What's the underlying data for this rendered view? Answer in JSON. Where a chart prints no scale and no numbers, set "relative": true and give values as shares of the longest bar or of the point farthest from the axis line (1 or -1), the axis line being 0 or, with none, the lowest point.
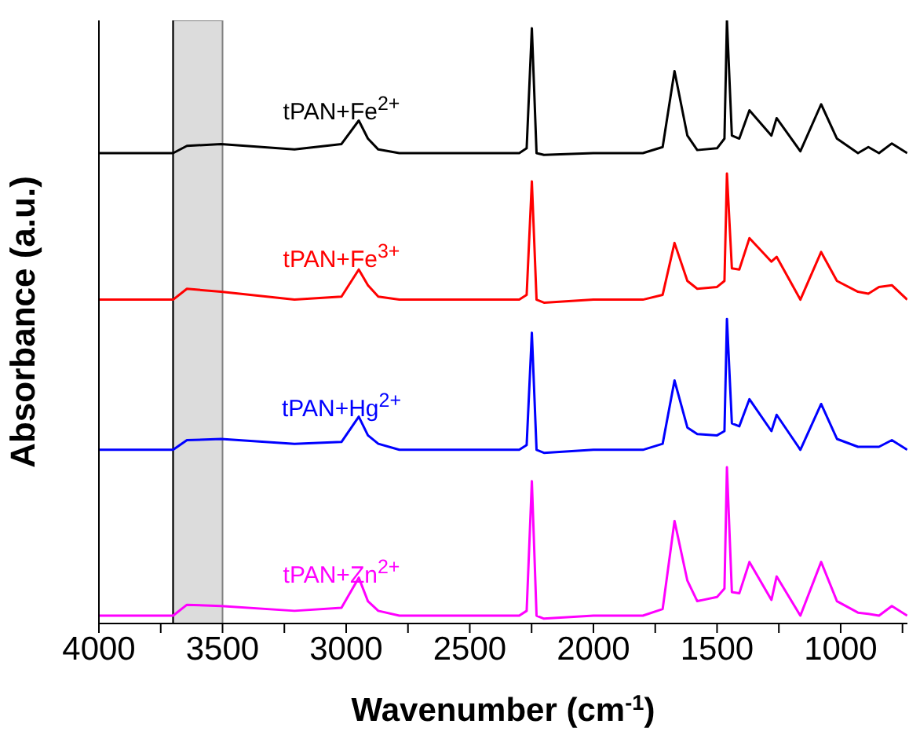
{
  "chart_data": {
    "type": "line",
    "relative": true,
    "xlabel": "Wavenumber (cm$^{-1}$)",
    "ylabel": "Absorbance (a.u.)",
    "x": [
      4000,
      3700,
      3644,
      3506,
      3209,
      3019,
      2949,
      2912,
      2870,
      2785,
      2300,
      2270,
      2249,
      2230,
      2200,
      2000,
      1800,
      1720,
      1672,
      1620,
      1580,
      1500,
      1470,
      1460,
      1440,
      1410,
      1369,
      1280,
      1259,
      1163,
      1079,
      1015,
      930,
      888,
      845,
      793,
      731
    ],
    "xlim": [
      4000,
      730
    ],
    "xticks": [
      4000,
      {
        "value": 3750,
        "label": null
      },
      3500,
      {
        "value": 3250,
        "label": null
      },
      3000,
      {
        "value": 2750,
        "label": null
      },
      2500,
      {
        "value": 2250,
        "label": null
      },
      2000,
      {
        "value": 1750,
        "label": null
      },
      1500,
      {
        "value": 1250,
        "label": null
      },
      1000,
      {
        "value": 750,
        "label": null
      }
    ],
    "series": [
      {
        "name": "tPAN+Fe$^{2+}$",
        "color": "#000000",
        "values": [
          0.78,
          0.78,
          0.792,
          0.795,
          0.786,
          0.795,
          0.834,
          0.804,
          0.786,
          0.78,
          0.78,
          0.788,
          0.987,
          0.78,
          0.777,
          0.78,
          0.78,
          0.79,
          0.916,
          0.809,
          0.785,
          0.788,
          0.804,
          1.0,
          0.809,
          0.804,
          0.851,
          0.809,
          0.838,
          0.783,
          0.861,
          0.804,
          0.78,
          0.79,
          0.78,
          0.796,
          0.78
        ]
      },
      {
        "name": "tPAN+Fe$^{3+}$",
        "color": "#ff0000",
        "values": [
          0.537,
          0.537,
          0.555,
          0.55,
          0.537,
          0.542,
          0.587,
          0.561,
          0.542,
          0.537,
          0.537,
          0.545,
          0.733,
          0.537,
          0.532,
          0.537,
          0.537,
          0.545,
          0.631,
          0.568,
          0.555,
          0.558,
          0.568,
          0.746,
          0.589,
          0.587,
          0.639,
          0.6,
          0.608,
          0.537,
          0.616,
          0.568,
          0.55,
          0.547,
          0.558,
          0.561,
          0.537
        ]
      },
      {
        "name": "tPAN+Hg$^{2+}$",
        "color": "#0000ff",
        "values": [
          0.288,
          0.288,
          0.304,
          0.306,
          0.298,
          0.301,
          0.343,
          0.312,
          0.298,
          0.288,
          0.288,
          0.296,
          0.482,
          0.288,
          0.283,
          0.288,
          0.288,
          0.298,
          0.403,
          0.325,
          0.314,
          0.312,
          0.319,
          0.505,
          0.332,
          0.327,
          0.372,
          0.319,
          0.346,
          0.288,
          0.364,
          0.306,
          0.293,
          0.293,
          0.293,
          0.304,
          0.288
        ]
      },
      {
        "name": "tPAN+Zn$^{2+}$",
        "color": "#ff00ff",
        "values": [
          0.013,
          0.013,
          0.031,
          0.029,
          0.021,
          0.026,
          0.076,
          0.037,
          0.021,
          0.013,
          0.013,
          0.021,
          0.236,
          0.013,
          0.008,
          0.013,
          0.013,
          0.024,
          0.17,
          0.071,
          0.037,
          0.044,
          0.058,
          0.259,
          0.052,
          0.05,
          0.102,
          0.039,
          0.078,
          0.013,
          0.102,
          0.037,
          0.018,
          0.016,
          0.013,
          0.029,
          0.013
        ]
      }
    ],
    "ref_lines": [
      {
        "axis": "x",
        "value": 3700,
        "color": "#000000"
      }
    ],
    "bands": [
      {
        "axis": "x",
        "from": 3700,
        "to": 3500,
        "color": "#dcdcdc"
      }
    ]
  }
}
